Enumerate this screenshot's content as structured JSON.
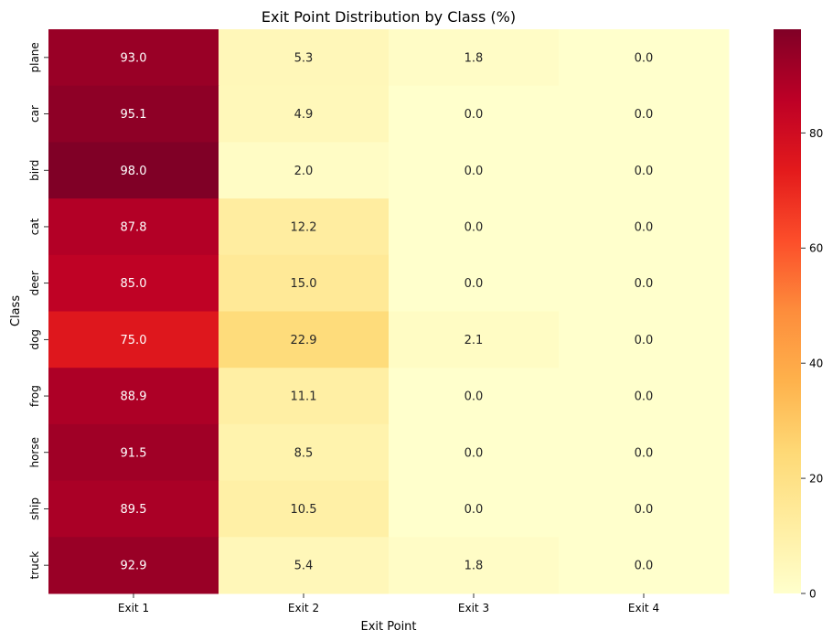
{
  "chart_data": {
    "type": "heatmap",
    "title": "Exit Point Distribution by Class (%)",
    "xlabel": "Exit Point",
    "ylabel": "Class",
    "columns": [
      "Exit 1",
      "Exit 2",
      "Exit 3",
      "Exit 4"
    ],
    "rows": [
      "plane",
      "car",
      "bird",
      "cat",
      "deer",
      "dog",
      "frog",
      "horse",
      "ship",
      "truck"
    ],
    "values": [
      [
        93.0,
        5.3,
        1.8,
        0.0
      ],
      [
        95.1,
        4.9,
        0.0,
        0.0
      ],
      [
        98.0,
        2.0,
        0.0,
        0.0
      ],
      [
        87.8,
        12.2,
        0.0,
        0.0
      ],
      [
        85.0,
        15.0,
        0.0,
        0.0
      ],
      [
        75.0,
        22.9,
        2.1,
        0.0
      ],
      [
        88.9,
        11.1,
        0.0,
        0.0
      ],
      [
        91.5,
        8.5,
        0.0,
        0.0
      ],
      [
        89.5,
        10.5,
        0.0,
        0.0
      ],
      [
        92.9,
        5.4,
        1.8,
        0.0
      ]
    ],
    "value_format": "0.1f",
    "colormap": "YlOrRd",
    "vmin": 0,
    "vmax": 98.0,
    "colorbar": {
      "ticks": [
        0,
        20,
        40,
        60,
        80
      ],
      "tick_labels": [
        "0",
        "20",
        "40",
        "60",
        "80"
      ]
    }
  }
}
